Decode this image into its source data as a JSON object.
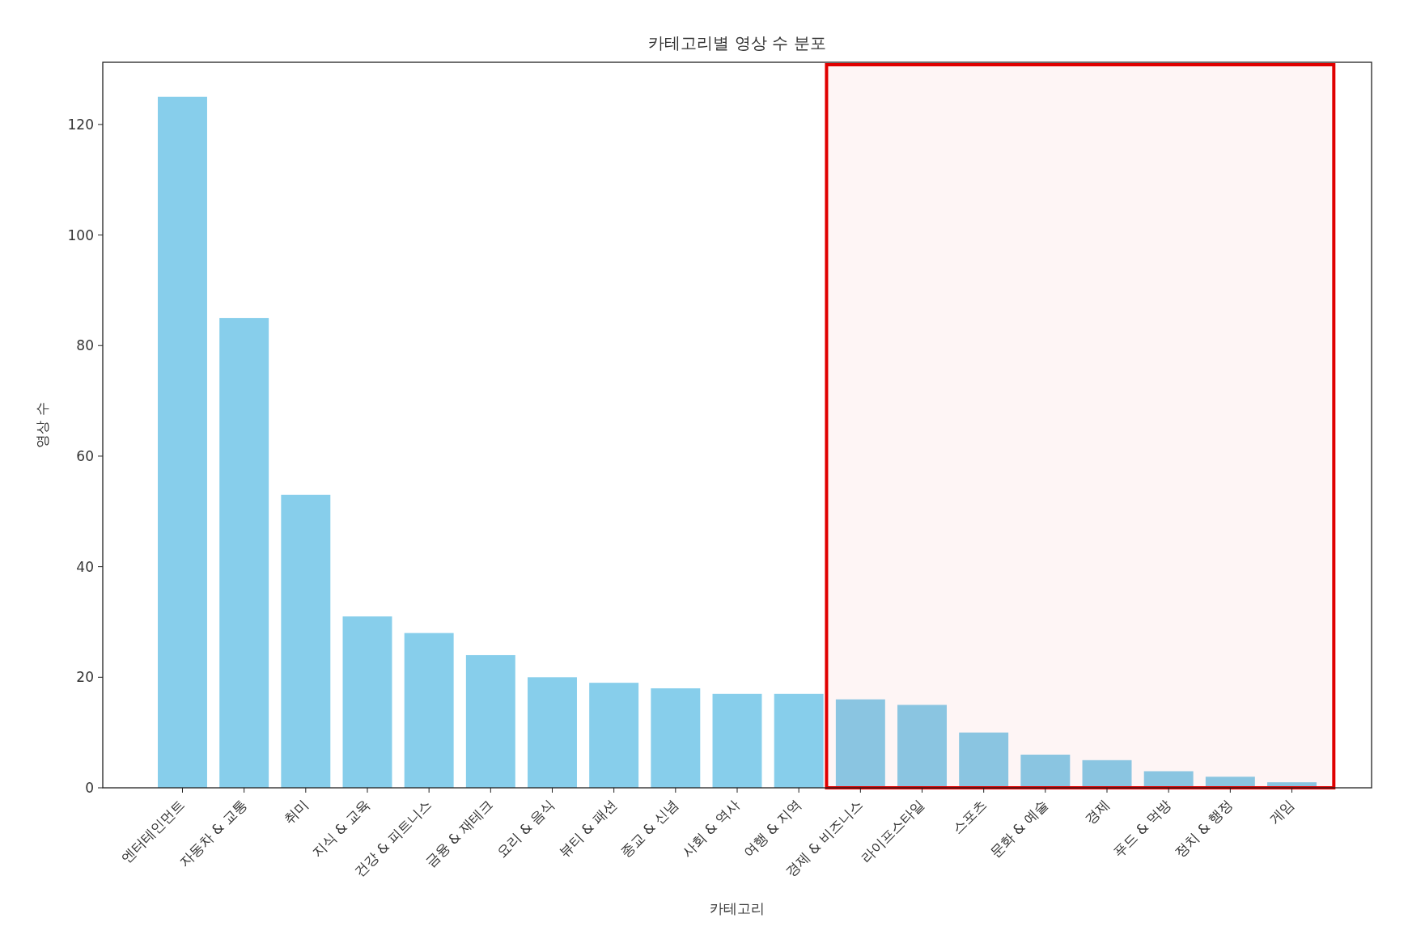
{
  "chart_data": {
    "type": "bar",
    "title": "카테고리별 영상 수 분포",
    "xlabel": "카테고리",
    "ylabel": "영상 수",
    "categories": [
      "엔터테인먼트",
      "자동차 & 교통",
      "취미",
      "지식 & 교육",
      "건강 & 피트니스",
      "금융 & 재테크",
      "요리 & 음식",
      "뷰티 & 패션",
      "종교 & 신념",
      "사회 & 역사",
      "여행 & 지역",
      "경제 & 비즈니스",
      "라이프스타일",
      "스포츠",
      "문화 & 예술",
      "경제",
      "푸드 & 먹방",
      "정치 & 행정",
      "게임"
    ],
    "values": [
      125,
      85,
      53,
      31,
      28,
      24,
      20,
      19,
      18,
      17,
      17,
      16,
      15,
      10,
      6,
      5,
      3,
      2,
      1
    ],
    "color": "#87ceeb",
    "ylim": [
      0,
      131.25
    ],
    "yticks": [
      0,
      20,
      40,
      60,
      80,
      100,
      120
    ],
    "grid": false,
    "bands": [
      {
        "axis": "x",
        "from": "경제 & 비즈니스",
        "to": "게임",
        "color": "#e00000"
      }
    ]
  }
}
